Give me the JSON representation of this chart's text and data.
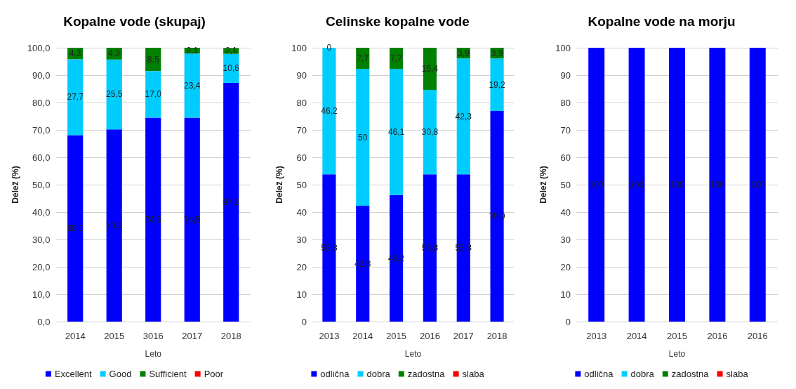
{
  "chart_data": [
    {
      "type": "bar",
      "title": "Kopalne vode (skupaj)",
      "xlabel": "Leto",
      "ylabel": "Delež (%)",
      "stacked": true,
      "grid": "y",
      "legend": "bottom",
      "categories": [
        "2014",
        "2015",
        "3016",
        "2017",
        "2018"
      ],
      "ylim": [
        0,
        100
      ],
      "yticks": [
        {
          "value": 0,
          "label": "0,0"
        },
        {
          "value": 10,
          "label": "10,0"
        },
        {
          "value": 20,
          "label": "20,0"
        },
        {
          "value": 30,
          "label": "30,0"
        },
        {
          "value": 40,
          "label": "40,0"
        },
        {
          "value": 50,
          "label": "50,0"
        },
        {
          "value": 60,
          "label": "60,0"
        },
        {
          "value": 70,
          "label": "70,0"
        },
        {
          "value": 80,
          "label": "80,0"
        },
        {
          "value": 90,
          "label": "90,0"
        },
        {
          "value": 100,
          "label": "100,0"
        }
      ],
      "series": [
        {
          "name": "Excellent",
          "color": "#0000ff",
          "values": [
            68.1,
            70.2,
            74.5,
            74.5,
            87.2
          ],
          "value_labels": [
            "68,1",
            "70,2",
            "74,5",
            "74,5",
            "87,2"
          ]
        },
        {
          "name": "Good",
          "color": "#00ccff",
          "values": [
            27.7,
            25.5,
            17.0,
            23.4,
            10.6
          ],
          "value_labels": [
            "27,7",
            "25,5",
            "17,0",
            "23,4",
            "10,6"
          ]
        },
        {
          "name": "Sufficient",
          "color": "#008000",
          "values": [
            4.3,
            4.3,
            8.5,
            2.1,
            2.1
          ],
          "value_labels": [
            "4,3",
            "4,3",
            "8,5",
            "2,1",
            "2,1"
          ]
        },
        {
          "name": "Poor",
          "color": "#ff0000",
          "values": [
            0,
            0,
            0,
            0,
            0
          ],
          "value_labels": [
            null,
            null,
            null,
            null,
            null
          ]
        }
      ]
    },
    {
      "type": "bar",
      "title": "Celinske kopalne vode",
      "xlabel": "Leto",
      "ylabel": "Delež (%)",
      "stacked": true,
      "grid": "y",
      "legend": "bottom",
      "categories": [
        "2013",
        "2014",
        "2015",
        "2016",
        "2017",
        "2018"
      ],
      "ylim": [
        0,
        100
      ],
      "yticks": [
        0,
        10,
        20,
        30,
        40,
        50,
        60,
        70,
        80,
        90,
        100
      ],
      "series": [
        {
          "name": "odlična",
          "color": "#0000ff",
          "values": [
            53.8,
            42.3,
            46.2,
            53.8,
            53.8,
            76.9
          ],
          "value_labels": [
            "53,8",
            "42,3",
            "46,2",
            "53,8",
            "53,8",
            "76,9"
          ]
        },
        {
          "name": "dobra",
          "color": "#00ccff",
          "values": [
            46.2,
            50,
            46.1,
            30.8,
            42.3,
            19.2
          ],
          "value_labels": [
            "46,2",
            "50",
            "46,1",
            "30,8",
            "42,3",
            "19,2"
          ]
        },
        {
          "name": "zadostna",
          "color": "#008000",
          "values": [
            0,
            7.7,
            7.7,
            15.4,
            3.9,
            3.9
          ],
          "value_labels": [
            "0",
            "7,7",
            "7,7",
            "15,4",
            "3,9",
            "3,9"
          ]
        },
        {
          "name": "slaba",
          "color": "#ff0000",
          "values": [
            0,
            0,
            0,
            0,
            0,
            0
          ],
          "value_labels": [
            null,
            null,
            null,
            null,
            null,
            null
          ]
        }
      ]
    },
    {
      "type": "bar",
      "title": "Kopalne vode na morju",
      "xlabel": "Leto",
      "ylabel": "Delež (%)",
      "stacked": true,
      "grid": "y",
      "legend": "bottom",
      "categories": [
        "2013",
        "2014",
        "2015",
        "2016",
        "2016"
      ],
      "ylim": [
        0,
        100
      ],
      "yticks": [
        0,
        10,
        20,
        30,
        40,
        50,
        60,
        70,
        80,
        90,
        100
      ],
      "series": [
        {
          "name": "odlična",
          "color": "#0000ff",
          "values": [
            100,
            100,
            100,
            100,
            100
          ],
          "value_labels": [
            "100",
            "100",
            "100",
            "100",
            "100"
          ]
        },
        {
          "name": "dobra",
          "color": "#00ccff",
          "values": [
            0,
            0,
            0,
            0,
            0
          ],
          "value_labels": [
            null,
            null,
            null,
            null,
            null
          ]
        },
        {
          "name": "zadostna",
          "color": "#008000",
          "values": [
            0,
            0,
            0,
            0,
            0
          ],
          "value_labels": [
            null,
            null,
            null,
            null,
            null
          ]
        },
        {
          "name": "slaba",
          "color": "#ff0000",
          "values": [
            0,
            0,
            0,
            0,
            0
          ],
          "value_labels": [
            null,
            null,
            null,
            null,
            null
          ]
        }
      ]
    }
  ]
}
